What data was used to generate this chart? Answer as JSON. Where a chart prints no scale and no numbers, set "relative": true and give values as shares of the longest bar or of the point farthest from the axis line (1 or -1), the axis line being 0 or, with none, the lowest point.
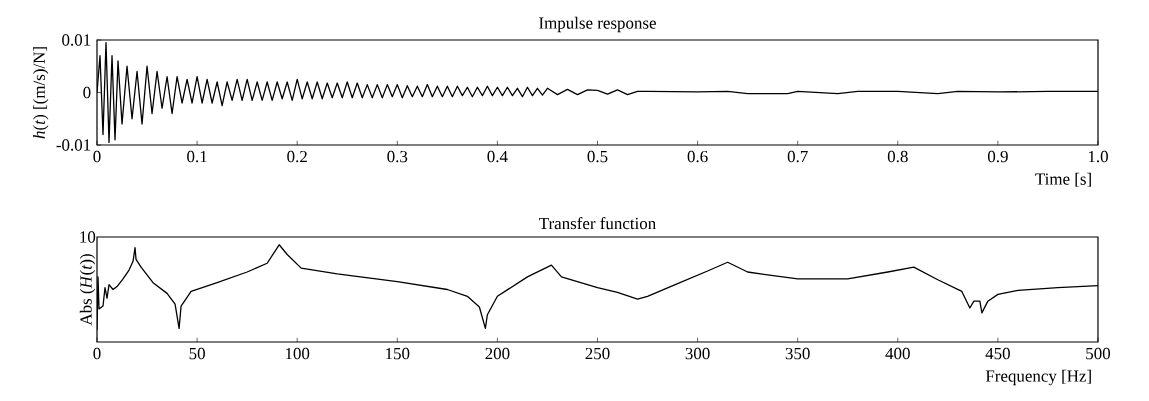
{
  "chart_data": [
    {
      "type": "line",
      "title": "Impulse response",
      "xlabel": "Time [s]",
      "ylabel": "*h*(*t*) [(m/s)/N]",
      "color": "#000000",
      "xlim": [
        0,
        1
      ],
      "ylim": [
        -0.01,
        0.01
      ],
      "xticks": [
        0,
        0.1,
        0.2,
        0.3,
        0.4,
        0.5,
        0.6,
        0.7,
        0.8,
        0.9,
        {
          "value": 1,
          "label": "1.0"
        }
      ],
      "yticks": [
        -0.01,
        0,
        0.01
      ],
      "x": [
        0,
        0.003,
        0.006,
        0.009,
        0.012,
        0.015,
        0.018,
        0.021,
        0.025,
        0.03,
        0.035,
        0.04,
        0.045,
        0.05,
        0.055,
        0.06,
        0.065,
        0.07,
        0.075,
        0.08,
        0.085,
        0.09,
        0.095,
        0.1,
        0.105,
        0.11,
        0.115,
        0.12,
        0.125,
        0.13,
        0.135,
        0.14,
        0.145,
        0.15,
        0.155,
        0.16,
        0.165,
        0.17,
        0.175,
        0.18,
        0.185,
        0.19,
        0.195,
        0.2,
        0.205,
        0.21,
        0.215,
        0.22,
        0.225,
        0.23,
        0.235,
        0.24,
        0.245,
        0.25,
        0.255,
        0.26,
        0.265,
        0.27,
        0.275,
        0.28,
        0.285,
        0.29,
        0.295,
        0.3,
        0.305,
        0.31,
        0.315,
        0.32,
        0.325,
        0.33,
        0.335,
        0.34,
        0.345,
        0.35,
        0.355,
        0.36,
        0.365,
        0.37,
        0.375,
        0.38,
        0.385,
        0.39,
        0.395,
        0.4,
        0.405,
        0.41,
        0.415,
        0.42,
        0.425,
        0.43,
        0.435,
        0.44,
        0.445,
        0.45,
        0.46,
        0.47,
        0.48,
        0.49,
        0.5,
        0.51,
        0.52,
        0.53,
        0.54,
        0.55,
        0.6,
        0.63,
        0.65,
        0.69,
        0.7,
        0.74,
        0.76,
        0.8,
        0.84,
        0.86,
        0.9,
        0.95,
        1.0
      ],
      "values": [
        0,
        0.007,
        -0.008,
        0.0095,
        -0.0095,
        0.007,
        -0.009,
        0.006,
        -0.006,
        0.005,
        -0.005,
        0.004,
        -0.006,
        0.005,
        -0.004,
        0.004,
        -0.003,
        0.003,
        -0.004,
        0.003,
        -0.002,
        0.0025,
        -0.002,
        0.003,
        -0.002,
        0.0025,
        -0.002,
        0.002,
        -0.0025,
        0.002,
        -0.0015,
        0.0025,
        -0.0015,
        0.0025,
        -0.0015,
        0.002,
        -0.0015,
        0.002,
        -0.0015,
        0.002,
        -0.0012,
        0.002,
        -0.0015,
        0.0025,
        -0.0012,
        0.002,
        -0.0012,
        0.002,
        -0.0012,
        0.0018,
        -0.001,
        0.0018,
        -0.001,
        0.002,
        -0.001,
        0.0018,
        -0.001,
        0.0015,
        -0.001,
        0.0015,
        -0.001,
        0.0015,
        -0.0008,
        0.0015,
        -0.001,
        0.0013,
        -0.0008,
        0.0012,
        -0.0008,
        0.0015,
        -0.0008,
        0.0012,
        -0.0008,
        0.0012,
        -0.0008,
        0.0012,
        -0.0006,
        0.001,
        -0.0008,
        0.001,
        -0.0006,
        0.0012,
        -0.0006,
        0.001,
        -0.0006,
        0.001,
        -0.0006,
        0.0008,
        -0.0008,
        0.001,
        -0.0006,
        0.0008,
        -0.0005,
        0.0008,
        -0.0004,
        0.0006,
        -0.0004,
        0.0005,
        0.0004,
        -0.0003,
        0.0005,
        -0.0004,
        0.0002,
        0.0002,
        0.0001,
        0.0002,
        -0.0002,
        -0.0002,
        0.0002,
        -0.0002,
        0.0002,
        0.0002,
        -0.0002,
        0.0002,
        0.0001,
        0.0002,
        0.0002
      ]
    },
    {
      "type": "line",
      "title": "Transfer function",
      "xlabel": "Frequency [Hz]",
      "ylabel": "Abs (*H*(*t*))",
      "color": "#000000",
      "relative": true,
      "annotations": [
        "10"
      ],
      "xlim": [
        0,
        500
      ],
      "xticks": [
        0,
        50,
        100,
        150,
        200,
        250,
        300,
        350,
        400,
        450,
        500
      ],
      "x": [
        0,
        0.5,
        1,
        3,
        4,
        5,
        6,
        8,
        10,
        13,
        16,
        18,
        19,
        19.5,
        22,
        28,
        35,
        39,
        41,
        42,
        47,
        60,
        75,
        85,
        91,
        95,
        102,
        120,
        150,
        175,
        185,
        191,
        194,
        195,
        200,
        215,
        227,
        232,
        250,
        260,
        270,
        275,
        290,
        305,
        315,
        325,
        335,
        350,
        375,
        395,
        408,
        420,
        432,
        436,
        438,
        441,
        442,
        445,
        450,
        460,
        480,
        500
      ],
      "values": [
        0.12,
        0.67,
        0.34,
        0.37,
        0.56,
        0.45,
        0.59,
        0.54,
        0.57,
        0.65,
        0.74,
        0.83,
        0.97,
        0.85,
        0.77,
        0.61,
        0.5,
        0.39,
        0.14,
        0.37,
        0.52,
        0.61,
        0.72,
        0.81,
        1,
        0.9,
        0.76,
        0.7,
        0.62,
        0.54,
        0.47,
        0.36,
        0.14,
        0.28,
        0.47,
        0.67,
        0.79,
        0.67,
        0.56,
        0.51,
        0.44,
        0.47,
        0.6,
        0.73,
        0.82,
        0.72,
        0.69,
        0.65,
        0.65,
        0.72,
        0.77,
        0.64,
        0.52,
        0.35,
        0.42,
        0.42,
        0.3,
        0.42,
        0.49,
        0.53,
        0.56,
        0.58
      ]
    }
  ]
}
